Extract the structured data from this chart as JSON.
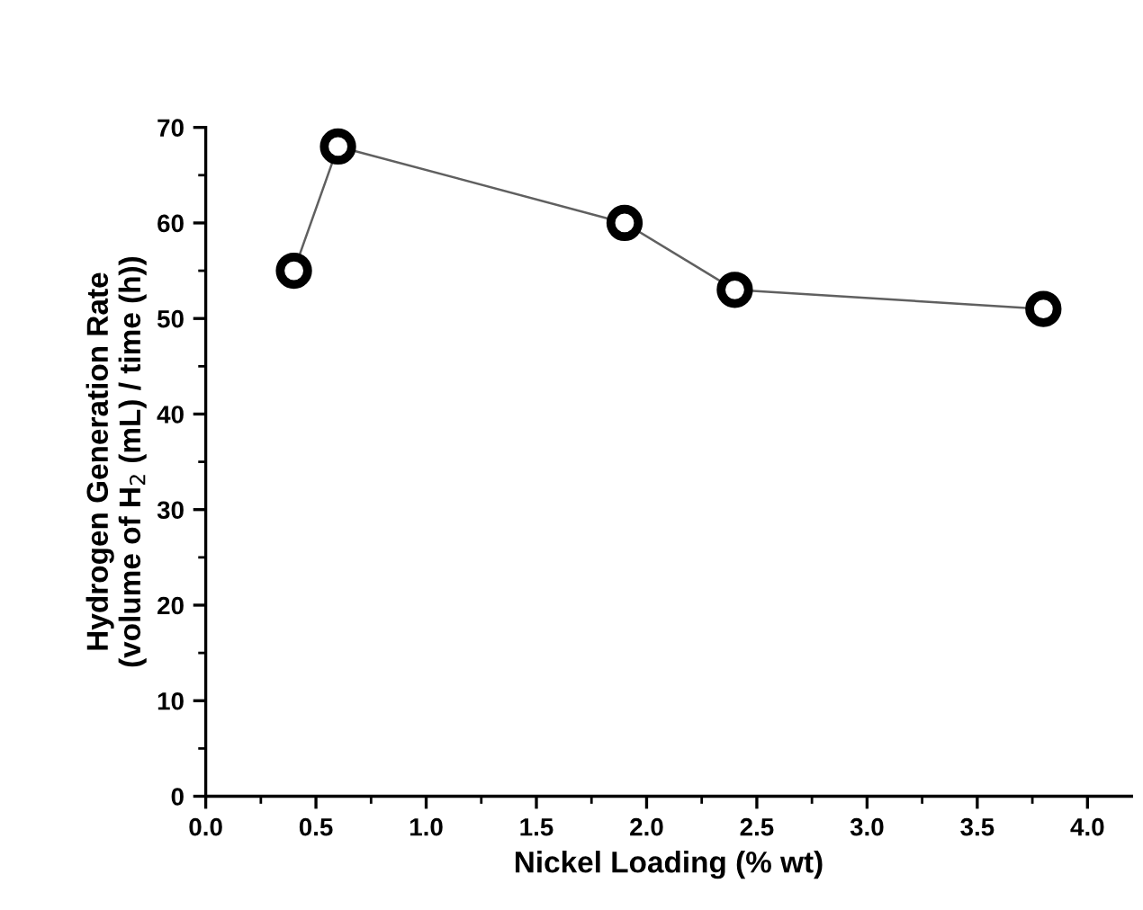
{
  "chart_data": {
    "type": "line",
    "xlabel": "Nickel Loading (% wt)",
    "ylabel": "Hydrogen Generation Rate\n(volume of H$_{2}$ (mL) / time (h))",
    "x": [
      0.4,
      0.6,
      1.9,
      2.4,
      3.8
    ],
    "series": [
      {
        "color": "#000000",
        "values": [
          55,
          68,
          60,
          53,
          51
        ]
      }
    ],
    "marker": "circle",
    "line_style": "solid",
    "grid": false,
    "legend": false,
    "xlim": [
      0,
      4.2
    ],
    "xticks": [
      {
        "value": 0,
        "label": "0.0"
      },
      {
        "value": 0.5,
        "label": "0.5"
      },
      {
        "value": 1,
        "label": "1.0"
      },
      {
        "value": 1.5,
        "label": "1.5"
      },
      {
        "value": 2,
        "label": "2.0"
      },
      {
        "value": 2.5,
        "label": "2.5"
      },
      {
        "value": 3,
        "label": "3.0"
      },
      {
        "value": 3.5,
        "label": "3.5"
      },
      {
        "value": 4,
        "label": "4.0"
      }
    ],
    "ylim": [
      0,
      70
    ],
    "yticks": [
      0,
      10,
      20,
      30,
      40,
      50,
      60,
      70
    ]
  }
}
